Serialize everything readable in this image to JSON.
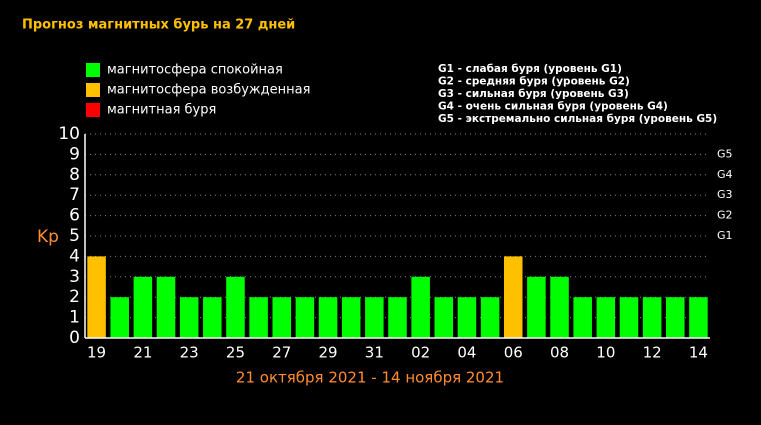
{
  "chart_data": {
    "type": "bar",
    "title": "Прогноз магнитных бурь на 27 дней",
    "ylabel": "Kp",
    "xlabel": "21 октября 2021 - 14 ноября 2021",
    "legend": [
      {
        "name": "магнитосфера спокойная",
        "color": "#00ff00"
      },
      {
        "name": "магнитосфера возбужденная",
        "color": "#ffc000"
      },
      {
        "name": "магнитная буря",
        "color": "#ff0000"
      }
    ],
    "notes": [
      "G1 - слабая буря (уровень G1)",
      "G2 - средняя буря (уровень G2)",
      "G3 - сильная буря (уровень G3)",
      "G4 - очень сильная буря (уровень G4)",
      "G5 - экстремально сильная буря (уровень G5)"
    ],
    "categories": [
      "19",
      null,
      "21",
      null,
      "23",
      null,
      "25",
      null,
      "27",
      null,
      "29",
      null,
      "31",
      null,
      "02",
      null,
      "04",
      null,
      "06",
      null,
      "08",
      null,
      "10",
      null,
      "12",
      null,
      "14"
    ],
    "values": [
      4,
      2,
      3,
      3,
      2,
      2,
      3,
      2,
      2,
      2,
      2,
      2,
      2,
      2,
      3,
      2,
      2,
      2,
      4,
      3,
      3,
      2,
      2,
      2,
      2,
      2,
      2
    ],
    "colors": [
      "#ffc000",
      "#00ff00",
      "#00ff00",
      "#00ff00",
      "#00ff00",
      "#00ff00",
      "#00ff00",
      "#00ff00",
      "#00ff00",
      "#00ff00",
      "#00ff00",
      "#00ff00",
      "#00ff00",
      "#00ff00",
      "#00ff00",
      "#00ff00",
      "#00ff00",
      "#00ff00",
      "#ffc000",
      "#00ff00",
      "#00ff00",
      "#00ff00",
      "#00ff00",
      "#00ff00",
      "#00ff00",
      "#00ff00",
      "#00ff00"
    ],
    "ylim": [
      0,
      10
    ],
    "yticks": [
      0,
      1,
      2,
      3,
      4,
      5,
      6,
      7,
      8,
      9,
      10
    ],
    "y2lim": [
      0,
      10
    ],
    "y2ticks": [
      {
        "value": 5,
        "label": "G1"
      },
      {
        "value": 6,
        "label": "G2"
      },
      {
        "value": 7,
        "label": "G3"
      },
      {
        "value": 8,
        "label": "G4"
      },
      {
        "value": 9,
        "label": "G5"
      }
    ],
    "grid": true
  }
}
